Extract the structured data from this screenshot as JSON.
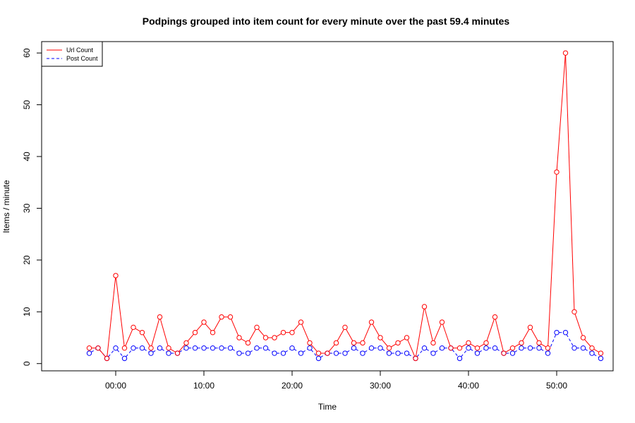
{
  "chart_data": {
    "type": "line",
    "title": "Podpings grouped into item count for every  minute  over the past 59.4 minutes",
    "xlabel": "Time",
    "ylabel": "Items /  minute",
    "xlim": [
      -8.4,
      56.4
    ],
    "ylim": [
      -1.4,
      62.2
    ],
    "x_ticks": [
      {
        "value": 0,
        "label": "00:00"
      },
      {
        "value": 10,
        "label": "10:00"
      },
      {
        "value": 20,
        "label": "20:00"
      },
      {
        "value": 30,
        "label": "30:00"
      },
      {
        "value": 40,
        "label": "40:00"
      },
      {
        "value": 50,
        "label": "50:00"
      }
    ],
    "y_ticks": [
      0,
      10,
      20,
      30,
      40,
      50,
      60
    ],
    "legend_position": "top-left",
    "x": [
      -3,
      -2,
      -1,
      0,
      1,
      2,
      3,
      4,
      5,
      6,
      7,
      8,
      9,
      10,
      11,
      12,
      13,
      14,
      15,
      16,
      17,
      18,
      19,
      20,
      21,
      22,
      23,
      24,
      25,
      26,
      27,
      28,
      29,
      30,
      31,
      32,
      33,
      34,
      35,
      36,
      37,
      38,
      39,
      40,
      41,
      42,
      43,
      44,
      45,
      46,
      47,
      48,
      49,
      50,
      51,
      52,
      53,
      54,
      55
    ],
    "series": [
      {
        "name": "Url Count",
        "color": "#ff0000",
        "line_style": "solid",
        "values": [
          3,
          3,
          1,
          17,
          3,
          7,
          6,
          3,
          9,
          3,
          2,
          4,
          6,
          8,
          6,
          9,
          9,
          5,
          4,
          7,
          5,
          5,
          6,
          6,
          8,
          4,
          2,
          2,
          4,
          7,
          4,
          4,
          8,
          5,
          3,
          4,
          5,
          1,
          11,
          4,
          8,
          3,
          3,
          4,
          3,
          4,
          9,
          2,
          3,
          4,
          7,
          4,
          3,
          37,
          60,
          10,
          5,
          3,
          2
        ]
      },
      {
        "name": "Post Count",
        "color": "#0000ff",
        "line_style": "dashed",
        "values": [
          2,
          3,
          1,
          3,
          1,
          3,
          3,
          2,
          3,
          2,
          2,
          3,
          3,
          3,
          3,
          3,
          3,
          2,
          2,
          3,
          3,
          2,
          2,
          3,
          2,
          3,
          1,
          2,
          2,
          2,
          3,
          2,
          3,
          3,
          2,
          2,
          2,
          1,
          3,
          2,
          3,
          3,
          1,
          3,
          2,
          3,
          3,
          2,
          2,
          3,
          3,
          3,
          2,
          6,
          6,
          3,
          3,
          2,
          1
        ]
      }
    ]
  }
}
